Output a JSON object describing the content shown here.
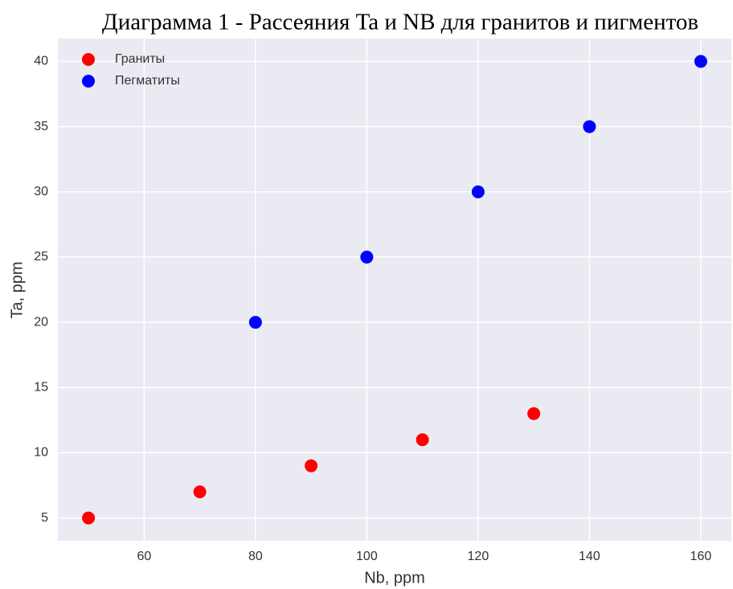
{
  "chart_data": {
    "type": "scatter",
    "title": "Диаграмма 1 - Рассеяния Ta и NB для гранитов и пигментов",
    "x_label": "Nb, ppm",
    "y_label": "Ta, ppm",
    "series": [
      {
        "name": "Граниты",
        "color": "#ff0000",
        "x": [
          50,
          70,
          90,
          110,
          130
        ],
        "values": [
          5,
          7,
          9,
          11,
          13
        ]
      },
      {
        "name": "Пегматиты",
        "color": "#0000ff",
        "x": [
          80,
          100,
          120,
          140,
          160
        ],
        "values": [
          20,
          25,
          30,
          35,
          40
        ]
      }
    ],
    "xlim": [
      44.5,
      165.5
    ],
    "xticks": [
      60,
      80,
      100,
      120,
      140,
      160
    ],
    "ylim": [
      3.25,
      41.75
    ],
    "yticks": [
      5,
      10,
      15,
      20,
      25,
      30,
      35,
      40
    ],
    "grid": true,
    "legend": "upper left"
  }
}
